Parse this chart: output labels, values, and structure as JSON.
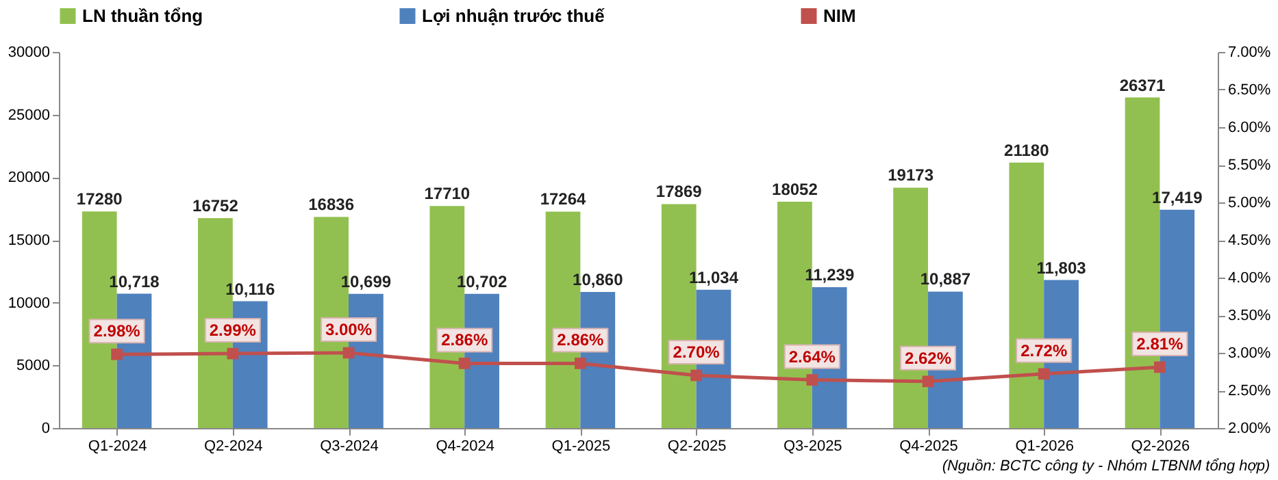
{
  "chart_data": {
    "type": "bar",
    "categories": [
      "Q1-2024",
      "Q2-2024",
      "Q3-2024",
      "Q4-2024",
      "Q1-2025",
      "Q2-2025",
      "Q3-2025",
      "Q4-2025",
      "Q1-2026",
      "Q2-2026"
    ],
    "series": [
      {
        "name": "LN thuần tổng",
        "color": "#92c050",
        "values": [
          17280,
          16752,
          16836,
          17710,
          17264,
          17869,
          18052,
          19173,
          21180,
          26371
        ],
        "value_labels": [
          "17280",
          "16752",
          "16836",
          "17710",
          "17264",
          "17869",
          "18052",
          "19173",
          "21180",
          "26371"
        ]
      },
      {
        "name": "Lợi nhuận trước thuế",
        "color": "#4f81bd",
        "values": [
          10718,
          10116,
          10699,
          10702,
          10860,
          11034,
          11239,
          10887,
          11803,
          17419
        ],
        "value_labels": [
          "10,718",
          "10,116",
          "10,699",
          "10,702",
          "10,860",
          "11,034",
          "11,239",
          "10,887",
          "11,803",
          "17,419"
        ]
      },
      {
        "name": "NIM",
        "type": "line",
        "axis": "y2",
        "color": "#c0504d",
        "marker": "square",
        "line_style": "solid",
        "values": [
          2.98,
          2.99,
          3.0,
          2.86,
          2.86,
          2.7,
          2.64,
          2.62,
          2.72,
          2.81
        ],
        "value_labels": [
          "2.98%",
          "2.99%",
          "3.00%",
          "2.86%",
          "2.86%",
          "2.70%",
          "2.64%",
          "2.62%",
          "2.72%",
          "2.81%"
        ]
      }
    ],
    "ylim": [
      0,
      30000
    ],
    "yticks": [
      0,
      5000,
      10000,
      15000,
      20000,
      25000,
      30000
    ],
    "y2lim": [
      2.0,
      7.0
    ],
    "y2ticks": [
      {
        "value": 2.0,
        "label": "2.00%"
      },
      {
        "value": 2.5,
        "label": "2.50%"
      },
      {
        "value": 3.0,
        "label": "3.00%"
      },
      {
        "value": 3.5,
        "label": "3.50%"
      },
      {
        "value": 4.0,
        "label": "4.00%"
      },
      {
        "value": 4.5,
        "label": "4.50%"
      },
      {
        "value": 5.0,
        "label": "5.00%"
      },
      {
        "value": 5.5,
        "label": "5.50%"
      },
      {
        "value": 6.0,
        "label": "6.00%"
      },
      {
        "value": 6.5,
        "label": "6.50%"
      },
      {
        "value": 7.0,
        "label": "7.00%"
      }
    ],
    "legend": "top",
    "grid": false,
    "annotations": [
      "(Nguồn: BCTC công ty - Nhóm LTBNM tổng hợp)"
    ]
  }
}
